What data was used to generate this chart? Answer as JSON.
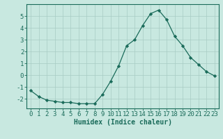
{
  "x": [
    0,
    1,
    2,
    3,
    4,
    5,
    6,
    7,
    8,
    9,
    10,
    11,
    12,
    13,
    14,
    15,
    16,
    17,
    18,
    19,
    20,
    21,
    22,
    23
  ],
  "y": [
    -1.3,
    -1.8,
    -2.1,
    -2.2,
    -2.3,
    -2.3,
    -2.4,
    -2.4,
    -2.4,
    -1.6,
    -0.5,
    0.8,
    2.5,
    3.0,
    4.2,
    5.2,
    5.5,
    4.7,
    3.3,
    2.5,
    1.5,
    0.9,
    0.3,
    -0.05
  ],
  "line_color": "#1a6b5a",
  "marker": "D",
  "marker_size": 2.2,
  "bg_color": "#c8e8e0",
  "grid_color": "#a8ccc4",
  "xlabel": "Humidex (Indice chaleur)",
  "xlim": [
    -0.5,
    23.5
  ],
  "ylim": [
    -2.8,
    6.0
  ],
  "yticks": [
    -2,
    -1,
    0,
    1,
    2,
    3,
    4,
    5
  ],
  "xtick_labels": [
    "0",
    "1",
    "2",
    "3",
    "4",
    "5",
    "6",
    "7",
    "8",
    "9",
    "10",
    "11",
    "12",
    "13",
    "14",
    "15",
    "16",
    "17",
    "18",
    "19",
    "20",
    "21",
    "22",
    "23"
  ],
  "xlabel_fontsize": 7.0,
  "tick_fontsize": 6.5
}
